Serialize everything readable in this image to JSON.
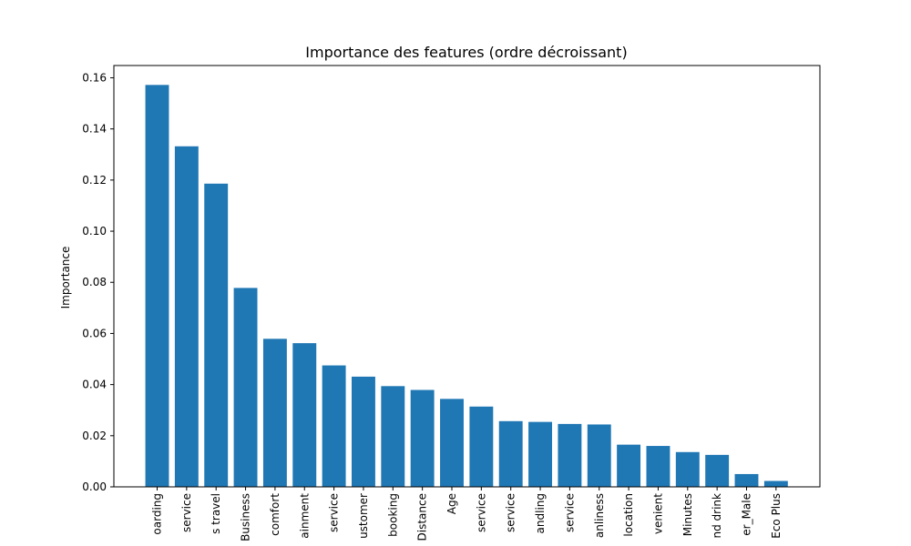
{
  "chart_data": {
    "type": "bar",
    "title": "Importance des features (ordre décroissant)",
    "xlabel": "",
    "ylabel": "Importance",
    "ylim": [
      0,
      0.1648
    ],
    "yticks": [
      0.0,
      0.02,
      0.04,
      0.06,
      0.08,
      0.1,
      0.12,
      0.14,
      0.16
    ],
    "ytick_labels": [
      "0.00",
      "0.02",
      "0.04",
      "0.06",
      "0.08",
      "0.10",
      "0.12",
      "0.14",
      "0.16"
    ],
    "grid": false,
    "bar_color": "#1f77b4",
    "categories": [
      "oarding",
      "service",
      "s travel",
      "Business",
      "comfort",
      "ainment",
      "service",
      "ustomer",
      "booking",
      "Distance",
      "Age",
      "service",
      "service",
      "andling",
      "service",
      "anliness",
      "location",
      "venient",
      "Minutes",
      "nd drink",
      "er_Male",
      "Eco Plus"
    ],
    "values": [
      0.1572,
      0.1332,
      0.1186,
      0.0778,
      0.0579,
      0.0562,
      0.0475,
      0.0431,
      0.0394,
      0.0379,
      0.0344,
      0.0314,
      0.0257,
      0.0254,
      0.0246,
      0.0244,
      0.0165,
      0.016,
      0.0136,
      0.0125,
      0.005,
      0.0023
    ]
  }
}
